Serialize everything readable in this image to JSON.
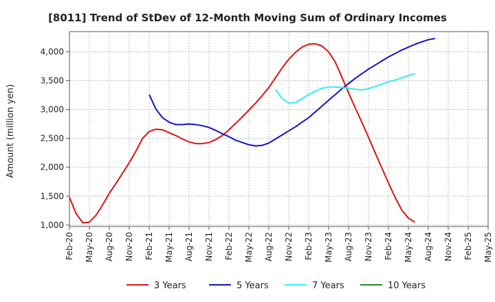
{
  "chart_data": {
    "type": "line",
    "title": "[8011]  Trend of StDev of 12-Month Moving Sum of Ordinary Incomes",
    "xlabel": "",
    "ylabel": "Amount (million yen)",
    "ylim": [
      975,
      4350
    ],
    "yticks": [
      1000,
      1500,
      2000,
      2500,
      3000,
      3500,
      4000
    ],
    "ytick_labels": [
      "1,000",
      "1,500",
      "2,000",
      "2,500",
      "3,000",
      "3,500",
      "4,000"
    ],
    "categories": [
      "Feb-20",
      "May-20",
      "Aug-20",
      "Nov-20",
      "Feb-21",
      "May-21",
      "Aug-21",
      "Nov-21",
      "Feb-22",
      "May-22",
      "Aug-22",
      "Nov-22",
      "Feb-23",
      "May-23",
      "Aug-23",
      "Nov-23",
      "Feb-24",
      "May-24",
      "Aug-24",
      "Nov-24",
      "Feb-25",
      "May-25"
    ],
    "legend_position": "bottom",
    "series": [
      {
        "name": "3 Years",
        "color": "#dd1111",
        "points": [
          [
            0,
            1480
          ],
          [
            1,
            1200
          ],
          [
            2,
            1040
          ],
          [
            3,
            1050
          ],
          [
            4,
            1170
          ],
          [
            5,
            1350
          ],
          [
            6,
            1550
          ],
          [
            7,
            1720
          ],
          [
            8,
            1900
          ],
          [
            9,
            2080
          ],
          [
            10,
            2280
          ],
          [
            11,
            2500
          ],
          [
            12,
            2620
          ],
          [
            13,
            2660
          ],
          [
            14,
            2650
          ],
          [
            15,
            2600
          ],
          [
            16,
            2550
          ],
          [
            17,
            2490
          ],
          [
            18,
            2440
          ],
          [
            19,
            2410
          ],
          [
            20,
            2410
          ],
          [
            21,
            2430
          ],
          [
            22,
            2480
          ],
          [
            23,
            2550
          ],
          [
            24,
            2650
          ],
          [
            25,
            2760
          ],
          [
            26,
            2870
          ],
          [
            27,
            2990
          ],
          [
            28,
            3110
          ],
          [
            29,
            3240
          ],
          [
            30,
            3380
          ],
          [
            31,
            3550
          ],
          [
            32,
            3720
          ],
          [
            33,
            3870
          ],
          [
            34,
            3990
          ],
          [
            35,
            4080
          ],
          [
            36,
            4130
          ],
          [
            37,
            4140
          ],
          [
            38,
            4100
          ],
          [
            39,
            4000
          ],
          [
            40,
            3820
          ],
          [
            41,
            3560
          ],
          [
            42,
            3290
          ],
          [
            43,
            3030
          ],
          [
            44,
            2780
          ],
          [
            45,
            2520
          ],
          [
            46,
            2250
          ],
          [
            47,
            1990
          ],
          [
            48,
            1730
          ],
          [
            49,
            1480
          ],
          [
            50,
            1260
          ],
          [
            51,
            1120
          ],
          [
            52,
            1050
          ]
        ]
      },
      {
        "name": "5 Years",
        "color": "#1111cc",
        "points": [
          [
            12,
            3260
          ],
          [
            13,
            3010
          ],
          [
            14,
            2860
          ],
          [
            15,
            2780
          ],
          [
            16,
            2740
          ],
          [
            17,
            2740
          ],
          [
            18,
            2750
          ],
          [
            19,
            2740
          ],
          [
            20,
            2720
          ],
          [
            21,
            2690
          ],
          [
            22,
            2640
          ],
          [
            23,
            2580
          ],
          [
            24,
            2530
          ],
          [
            25,
            2470
          ],
          [
            26,
            2430
          ],
          [
            27,
            2390
          ],
          [
            28,
            2370
          ],
          [
            29,
            2380
          ],
          [
            30,
            2420
          ],
          [
            31,
            2490
          ],
          [
            32,
            2560
          ],
          [
            33,
            2630
          ],
          [
            34,
            2700
          ],
          [
            35,
            2780
          ],
          [
            36,
            2860
          ],
          [
            37,
            2960
          ],
          [
            38,
            3060
          ],
          [
            39,
            3160
          ],
          [
            40,
            3260
          ],
          [
            41,
            3360
          ],
          [
            42,
            3450
          ],
          [
            43,
            3540
          ],
          [
            44,
            3620
          ],
          [
            45,
            3700
          ],
          [
            46,
            3770
          ],
          [
            47,
            3840
          ],
          [
            48,
            3910
          ],
          [
            49,
            3970
          ],
          [
            50,
            4030
          ],
          [
            51,
            4080
          ],
          [
            52,
            4130
          ],
          [
            53,
            4170
          ],
          [
            54,
            4210
          ],
          [
            55,
            4230
          ]
        ]
      },
      {
        "name": "7 Years",
        "color": "#33eeee",
        "points": [
          [
            31,
            3350
          ],
          [
            32,
            3190
          ],
          [
            33,
            3110
          ],
          [
            34,
            3120
          ],
          [
            35,
            3190
          ],
          [
            36,
            3260
          ],
          [
            37,
            3320
          ],
          [
            38,
            3370
          ],
          [
            39,
            3390
          ],
          [
            40,
            3390
          ],
          [
            41,
            3380
          ],
          [
            42,
            3370
          ],
          [
            43,
            3350
          ],
          [
            44,
            3340
          ],
          [
            45,
            3360
          ],
          [
            46,
            3400
          ],
          [
            47,
            3440
          ],
          [
            48,
            3480
          ],
          [
            49,
            3510
          ],
          [
            50,
            3550
          ],
          [
            51,
            3590
          ],
          [
            52,
            3620
          ]
        ]
      },
      {
        "name": "10 Years",
        "color": "#228822",
        "points": []
      }
    ]
  }
}
